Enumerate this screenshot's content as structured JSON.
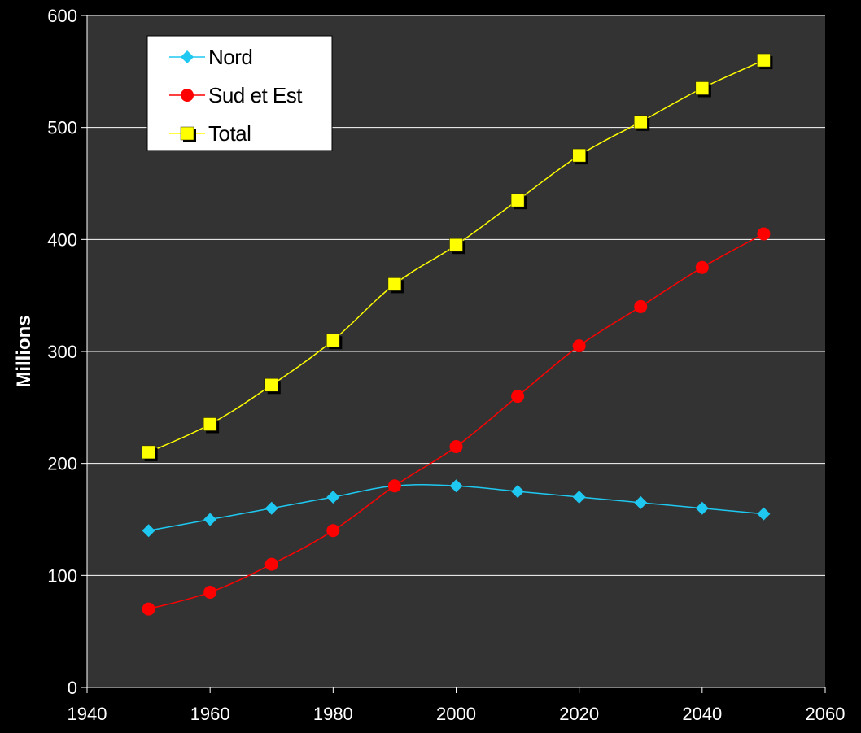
{
  "chart_data": {
    "type": "line",
    "title": "",
    "xlabel": "",
    "ylabel": "Millions",
    "xlim": [
      1940,
      2060
    ],
    "ylim": [
      0,
      600
    ],
    "x_ticks": [
      1940,
      1960,
      1980,
      2000,
      2020,
      2040,
      2060
    ],
    "y_ticks": [
      0,
      100,
      200,
      300,
      400,
      500,
      600
    ],
    "grid": "horizontal",
    "legend_position": "top-left",
    "x": [
      1950,
      1960,
      1970,
      1980,
      1990,
      2000,
      2010,
      2020,
      2030,
      2040,
      2050
    ],
    "series": [
      {
        "name": "Nord",
        "color": "#1ec8f0",
        "marker": "diamond",
        "values": [
          140,
          150,
          160,
          170,
          180,
          180,
          175,
          170,
          165,
          160,
          155
        ]
      },
      {
        "name": "Sud et Est",
        "color": "#ff0000",
        "marker": "circle",
        "values": [
          70,
          85,
          110,
          140,
          180,
          215,
          260,
          305,
          340,
          375,
          405
        ]
      },
      {
        "name": "Total",
        "color": "#ffff00",
        "marker": "square",
        "values": [
          210,
          235,
          270,
          310,
          360,
          395,
          435,
          475,
          505,
          535,
          560
        ]
      }
    ]
  },
  "colors": {
    "background": "#000000",
    "plot_area": "#333333",
    "gridline": "#ffffff",
    "axis_text": "#ffffff",
    "legend_background": "#ffffff"
  }
}
